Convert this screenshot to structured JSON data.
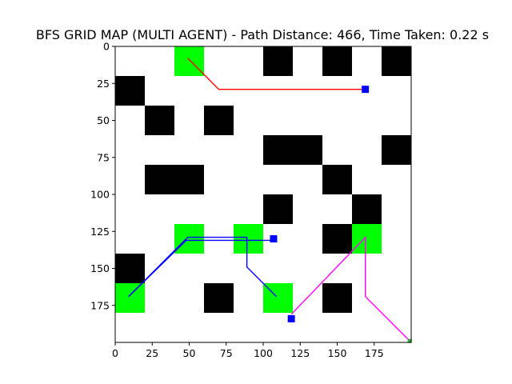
{
  "chart_data": {
    "type": "grid-map",
    "title": "BFS GRID MAP (MULTI AGENT) - Path Distance: 466, Time Taken: 0.22 s",
    "xlabel": "",
    "ylabel": "",
    "xlim": [
      0,
      200
    ],
    "ylim": [
      200,
      0
    ],
    "x_ticks": [
      0,
      25,
      50,
      75,
      100,
      125,
      150,
      175
    ],
    "y_ticks": [
      0,
      25,
      50,
      75,
      100,
      125,
      150,
      175
    ],
    "grid": false,
    "colors": {
      "background": "#ffffff",
      "obstacle": "#000000",
      "goal": "#00ff00",
      "marker": "#0000ff",
      "small_marker": "#33aa33"
    },
    "obstacles": [
      {
        "x": 100,
        "y": 0,
        "w": 20,
        "h": 20
      },
      {
        "x": 140,
        "y": 0,
        "w": 20,
        "h": 20
      },
      {
        "x": 180,
        "y": 0,
        "w": 20,
        "h": 20
      },
      {
        "x": 0,
        "y": 20,
        "w": 20,
        "h": 20
      },
      {
        "x": 20,
        "y": 40,
        "w": 20,
        "h": 20
      },
      {
        "x": 60,
        "y": 40,
        "w": 20,
        "h": 20
      },
      {
        "x": 100,
        "y": 60,
        "w": 40,
        "h": 20
      },
      {
        "x": 180,
        "y": 60,
        "w": 20,
        "h": 20
      },
      {
        "x": 20,
        "y": 80,
        "w": 40,
        "h": 20
      },
      {
        "x": 140,
        "y": 80,
        "w": 20,
        "h": 20
      },
      {
        "x": 100,
        "y": 100,
        "w": 20,
        "h": 20
      },
      {
        "x": 160,
        "y": 100,
        "w": 20,
        "h": 20
      },
      {
        "x": 140,
        "y": 120,
        "w": 20,
        "h": 20
      },
      {
        "x": 0,
        "y": 140,
        "w": 20,
        "h": 20
      },
      {
        "x": 60,
        "y": 160,
        "w": 20,
        "h": 20
      },
      {
        "x": 140,
        "y": 160,
        "w": 20,
        "h": 20
      }
    ],
    "goals": [
      {
        "x": 40,
        "y": 0,
        "w": 20,
        "h": 20
      },
      {
        "x": 40,
        "y": 120,
        "w": 20,
        "h": 20
      },
      {
        "x": 80,
        "y": 120,
        "w": 20,
        "h": 20
      },
      {
        "x": 160,
        "y": 120,
        "w": 20,
        "h": 20
      },
      {
        "x": 0,
        "y": 160,
        "w": 20,
        "h": 20
      },
      {
        "x": 100,
        "y": 160,
        "w": 20,
        "h": 20
      }
    ],
    "paths": [
      {
        "color": "#ff0000",
        "points": [
          [
            49,
            8
          ],
          [
            70,
            29
          ],
          [
            168,
            29
          ]
        ]
      },
      {
        "color": "#0000ff",
        "points": [
          [
            9,
            169
          ],
          [
            49,
            129
          ],
          [
            89,
            129
          ],
          [
            89,
            149
          ],
          [
            109,
            169
          ]
        ]
      },
      {
        "color": "#0000ff",
        "points": [
          [
            9,
            169
          ],
          [
            48,
            131
          ],
          [
            107,
            131
          ]
        ]
      },
      {
        "color": "#ff00ff",
        "points": [
          [
            119,
            181
          ],
          [
            169,
            129
          ],
          [
            169,
            169
          ],
          [
            199,
            199
          ]
        ]
      }
    ],
    "markers": [
      {
        "x": 169,
        "y": 29,
        "color": "#0000ff",
        "size": 9
      },
      {
        "x": 107,
        "y": 130,
        "color": "#0000ff",
        "size": 9
      },
      {
        "x": 119,
        "y": 184,
        "color": "#0000ff",
        "size": 9
      },
      {
        "x": 199,
        "y": 199,
        "color": "#33aa33",
        "size": 5
      }
    ]
  }
}
